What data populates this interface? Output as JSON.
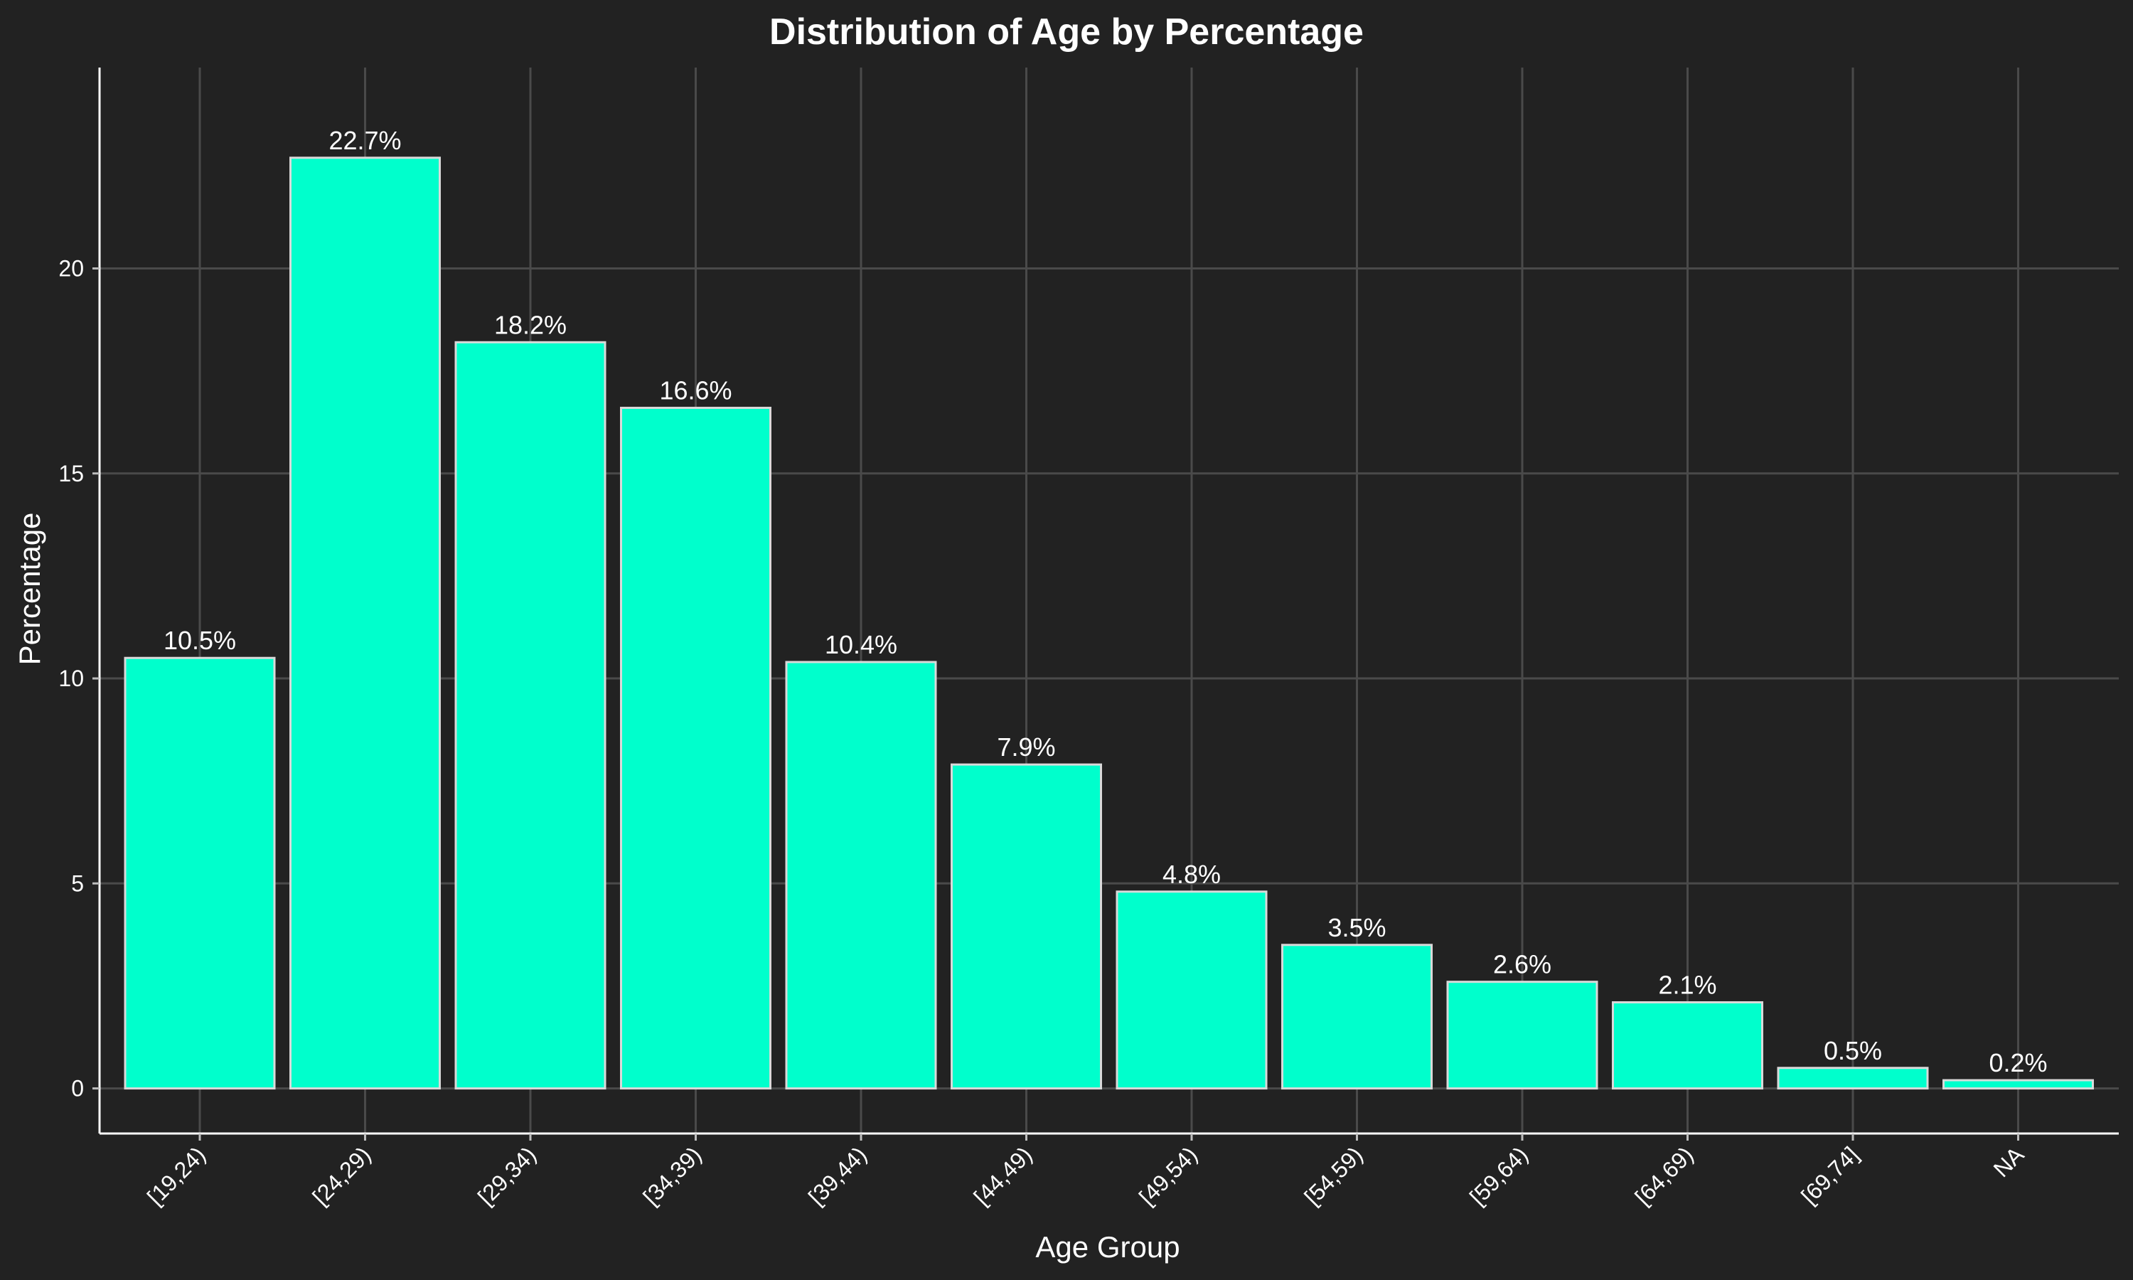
{
  "chart_data": {
    "type": "bar",
    "title": "Distribution of Age by Percentage",
    "xlabel": "Age Group",
    "ylabel": "Percentage",
    "categories": [
      "[19,24)",
      "[24,29)",
      "[29,34)",
      "[34,39)",
      "[39,44)",
      "[44,49)",
      "[49,54)",
      "[54,59)",
      "[59,64)",
      "[64,69)",
      "[69,74]",
      "NA"
    ],
    "values": [
      10.5,
      22.7,
      18.2,
      16.6,
      10.4,
      7.9,
      4.8,
      3.5,
      2.6,
      2.1,
      0.5,
      0.2
    ],
    "data_labels": [
      "10.5%",
      "22.7%",
      "18.2%",
      "16.6%",
      "10.4%",
      "7.9%",
      "4.8%",
      "3.5%",
      "2.6%",
      "2.1%",
      "0.5%",
      "0.2%"
    ],
    "yticks": [
      0,
      5,
      10,
      15,
      20
    ],
    "ylim": [
      -1.1,
      24.9
    ],
    "grid": true,
    "colors": {
      "background": "#222222",
      "bar_fill": "#00ffcc",
      "bar_edge": "#d9d9d9",
      "grid": "#4a4a4a",
      "text": "#ffffff"
    }
  }
}
